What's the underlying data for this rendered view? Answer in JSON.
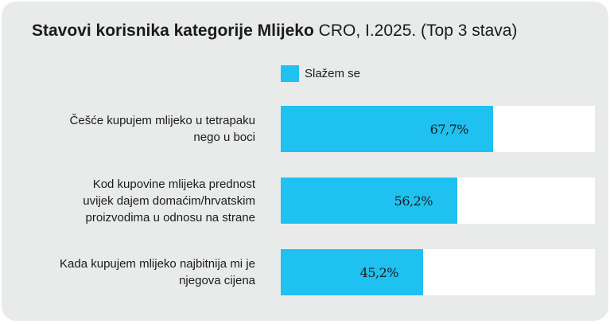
{
  "title_bold": "Stavovi korisnika kategorije Mlijeko",
  "title_rest": " CRO, I.2025. (Top 3 stava)",
  "colors": {
    "bar": "#1ec1f0",
    "track": "#ffffff",
    "background": "#e8ebea"
  },
  "chart_data": {
    "type": "bar",
    "orientation": "horizontal",
    "xlim": [
      0,
      100
    ],
    "grid": false,
    "legend_position": "top",
    "categories": [
      [
        "Češće kupujem mlijeko u tetrapaku",
        "nego u boci"
      ],
      [
        "Kod kupovine mlijeka prednost",
        "uvijek dajem domaćim/hrvatskim",
        "proizvodima u odnosu na strane"
      ],
      [
        "Kada kupujem mlijeko najbitnija mi je",
        "njegova cijena"
      ]
    ],
    "series": [
      {
        "name": "Slažem se",
        "values": [
          67.7,
          56.2,
          45.2
        ],
        "labels": [
          "67,7%",
          "56,2%",
          "45,2%"
        ]
      }
    ]
  }
}
